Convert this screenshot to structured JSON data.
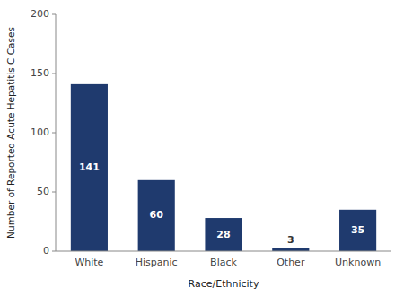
{
  "chart_data": {
    "type": "bar",
    "categories": [
      "White",
      "Hispanic",
      "Black",
      "Other",
      "Unknown"
    ],
    "values": [
      141,
      60,
      28,
      3,
      35
    ],
    "color": "#1F3A6E",
    "xlabel": "Race/Ethnicity",
    "ylabel": "Number of Reported Acute Hepatitis C Cases",
    "ylim": [
      0,
      200
    ],
    "yticks": [
      0,
      50,
      100,
      150,
      200
    ],
    "grid": false,
    "data_labels": true
  }
}
